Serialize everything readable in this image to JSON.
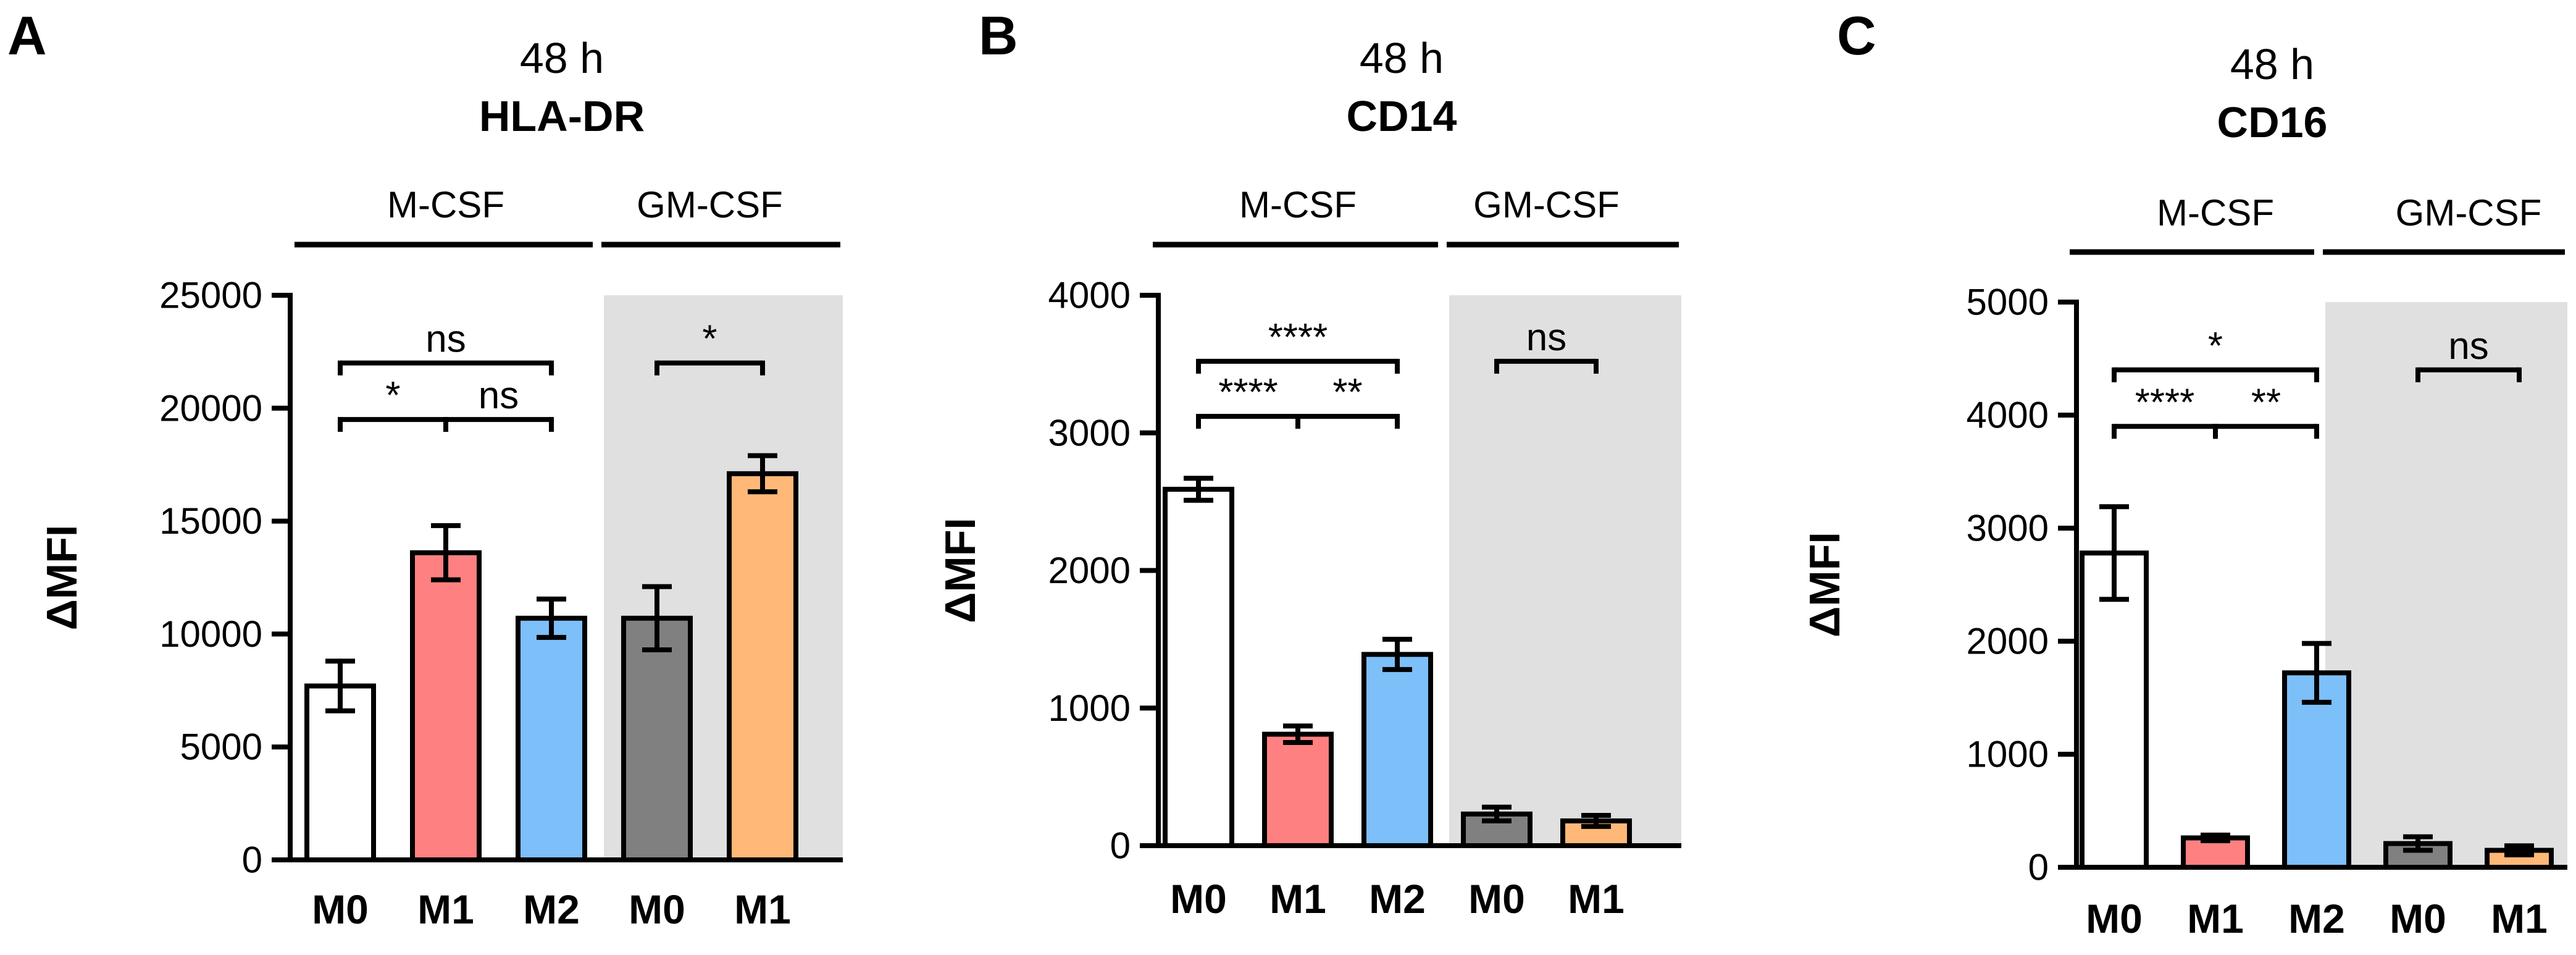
{
  "colors": {
    "M-CSF M0": "#ffffff",
    "M-CSF M1": "#ff8080",
    "M-CSF M2": "#7dbff9",
    "GM-CSF M0": "#808080",
    "GM-CSF M1": "#ffb878",
    "gm_background": "#e0e0e0",
    "stroke": "#000000"
  },
  "chart_data": [
    {
      "type": "bar",
      "letter": "A",
      "title_line1": "48 h",
      "title_line2": "HLA-DR",
      "ylabel": "ΔMFI",
      "ylim": [
        0,
        25000
      ],
      "yticks": [
        0,
        5000,
        10000,
        15000,
        20000,
        25000
      ],
      "groups": [
        "M-CSF",
        "GM-CSF"
      ],
      "categories": [
        "M0",
        "M1",
        "M2",
        "M0",
        "M1"
      ],
      "category_groups": [
        "M-CSF",
        "M-CSF",
        "M-CSF",
        "GM-CSF",
        "GM-CSF"
      ],
      "values": [
        7700,
        13600,
        10700,
        10700,
        17100
      ],
      "errors": [
        1100,
        1200,
        850,
        1400,
        800
      ],
      "significance": [
        {
          "from": 0,
          "to": 2,
          "label": "ns",
          "y": 22000,
          "tier": 2
        },
        {
          "from": 0,
          "to": 1,
          "label": "*",
          "y": 19500,
          "tier": 1
        },
        {
          "from": 1,
          "to": 2,
          "label": "ns",
          "y": 19500,
          "tier": 1
        },
        {
          "from": 3,
          "to": 4,
          "label": "*",
          "y": 22000,
          "tier": 2
        }
      ]
    },
    {
      "type": "bar",
      "letter": "B",
      "title_line1": "48 h",
      "title_line2": "CD14",
      "ylabel": "ΔMFI",
      "ylim": [
        0,
        4000
      ],
      "yticks": [
        0,
        1000,
        2000,
        3000,
        4000
      ],
      "groups": [
        "M-CSF",
        "GM-CSF"
      ],
      "categories": [
        "M0",
        "M1",
        "M2",
        "M0",
        "M1"
      ],
      "category_groups": [
        "M-CSF",
        "M-CSF",
        "M-CSF",
        "GM-CSF",
        "GM-CSF"
      ],
      "values": [
        2590,
        810,
        1390,
        230,
        180
      ],
      "errors": [
        80,
        60,
        110,
        50,
        40
      ],
      "significance": [
        {
          "from": 0,
          "to": 2,
          "label": "****",
          "y": 3520,
          "tier": 2
        },
        {
          "from": 0,
          "to": 1,
          "label": "****",
          "y": 3120,
          "tier": 1
        },
        {
          "from": 1,
          "to": 2,
          "label": "**",
          "y": 3120,
          "tier": 1
        },
        {
          "from": 3,
          "to": 4,
          "label": "ns",
          "y": 3520,
          "tier": 2
        }
      ]
    },
    {
      "type": "bar",
      "letter": "C",
      "title_line1": "48 h",
      "title_line2": "CD16",
      "ylabel": "ΔMFI",
      "ylim": [
        0,
        5000
      ],
      "yticks": [
        0,
        1000,
        2000,
        3000,
        4000,
        5000
      ],
      "groups": [
        "M-CSF",
        "GM-CSF"
      ],
      "categories": [
        "M0",
        "M1",
        "M2",
        "M0",
        "M1"
      ],
      "category_groups": [
        "M-CSF",
        "M-CSF",
        "M-CSF",
        "GM-CSF",
        "GM-CSF"
      ],
      "values": [
        2780,
        260,
        1720,
        210,
        150
      ],
      "errors": [
        410,
        25,
        260,
        60,
        40
      ],
      "significance": [
        {
          "from": 0,
          "to": 2,
          "label": "*",
          "y": 4400,
          "tier": 2
        },
        {
          "from": 0,
          "to": 1,
          "label": "****",
          "y": 3900,
          "tier": 1
        },
        {
          "from": 1,
          "to": 2,
          "label": "**",
          "y": 3900,
          "tier": 1
        },
        {
          "from": 3,
          "to": 4,
          "label": "ns",
          "y": 4400,
          "tier": 2
        }
      ]
    }
  ]
}
